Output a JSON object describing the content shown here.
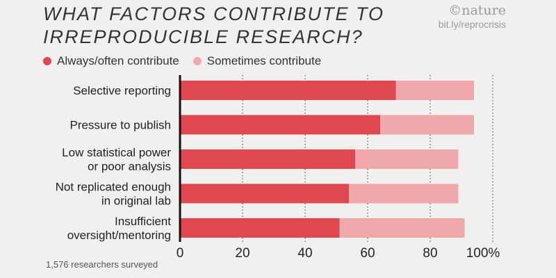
{
  "header": {
    "title": "WHAT FACTORS CONTRIBUTE TO IRREPRODUCIBLE RESEARCH?",
    "brand_logo": "©nature",
    "brand_link": "bit.ly/reprocrisis"
  },
  "legend": {
    "items": [
      {
        "label": "Always/often contribute",
        "color": "#e0474e"
      },
      {
        "label": "Sometimes contribute",
        "color": "#f0a8aa"
      }
    ]
  },
  "footer": {
    "note": "1,576 researchers surveyed"
  },
  "chart_data": {
    "type": "bar",
    "orientation": "horizontal",
    "stacked": true,
    "categories": [
      [
        "Selective reporting"
      ],
      [
        "Pressure to publish"
      ],
      [
        "Low statistical power",
        "or poor analysis"
      ],
      [
        "Not replicated enough",
        "in original lab"
      ],
      [
        "Insufficient",
        "oversight/mentoring"
      ]
    ],
    "series": [
      {
        "name": "Always/often contribute",
        "color": "#e0474e",
        "values": [
          69,
          64,
          56,
          54,
          51
        ]
      },
      {
        "name": "Sometimes contribute",
        "color": "#f0a8aa",
        "values": [
          25,
          30,
          33,
          35,
          40
        ]
      }
    ],
    "xticks": [
      "0",
      "20",
      "40",
      "60",
      "80",
      "100%"
    ],
    "xlim": [
      0,
      100
    ],
    "grid": "dotted vertical"
  }
}
